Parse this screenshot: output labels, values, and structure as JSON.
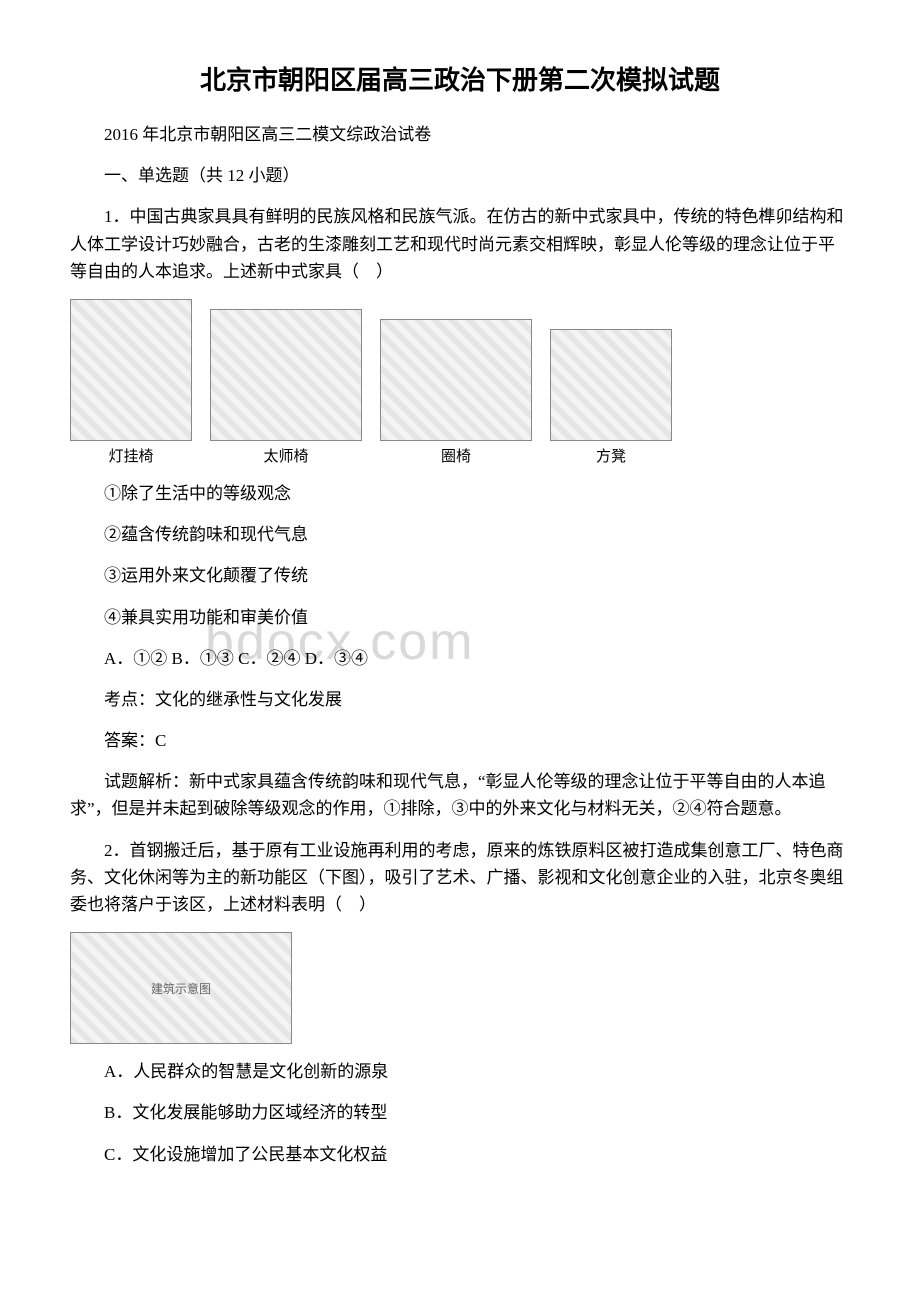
{
  "title": "北京市朝阳区届高三政治下册第二次模拟试题",
  "subtitle": "2016 年北京市朝阳区高三二模文综政治试卷",
  "section": "一、单选题（共 12 小题）",
  "q1": {
    "stem": "1．中国古典家具具有鲜明的民族风格和民族气派。在仿古的新中式家具中，传统的特色榫卯结构和人体工学设计巧妙融合，古老的生漆雕刻工艺和现代时尚元素交相辉映，彰显人伦等级的理念让位于平等自由的人本追求。上述新中式家具（　）",
    "images": [
      {
        "caption": "灯挂椅",
        "w": 120,
        "h": 140
      },
      {
        "caption": "太师椅",
        "w": 150,
        "h": 130
      },
      {
        "caption": "圈椅",
        "w": 150,
        "h": 120
      },
      {
        "caption": "方凳",
        "w": 120,
        "h": 110
      }
    ],
    "opts": [
      "①除了生活中的等级观念",
      "②蕴含传统韵味和现代气息",
      "③运用外来文化颠覆了传统",
      "④兼具实用功能和审美价值"
    ],
    "choices": "A．①② B．①③ C．②④ D．③④",
    "topic": "考点：文化的继承性与文化发展",
    "answer": "答案：C",
    "analysis": "试题解析：新中式家具蕴含传统韵味和现代气息，“彰显人伦等级的理念让位于平等自由的人本追求”，但是并未起到破除等级观念的作用，①排除，③中的外来文化与材料无关，②④符合题意。"
  },
  "q2": {
    "stem": "2．首钢搬迁后，基于原有工业设施再利用的考虑，原来的炼铁原料区被打造成集创意工厂、特色商务、文化休闲等为主的新功能区（下图），吸引了艺术、广播、影视和文化创意企业的入驻，北京冬奥组委也将落户于该区，上述材料表明（　）",
    "image_label": "建筑示意图",
    "opts": [
      "A．人民群众的智慧是文化创新的源泉",
      "B．文化发展能够助力区域经济的转型",
      "C．文化设施增加了公民基本文化权益"
    ]
  },
  "watermark": "bdocx.com"
}
